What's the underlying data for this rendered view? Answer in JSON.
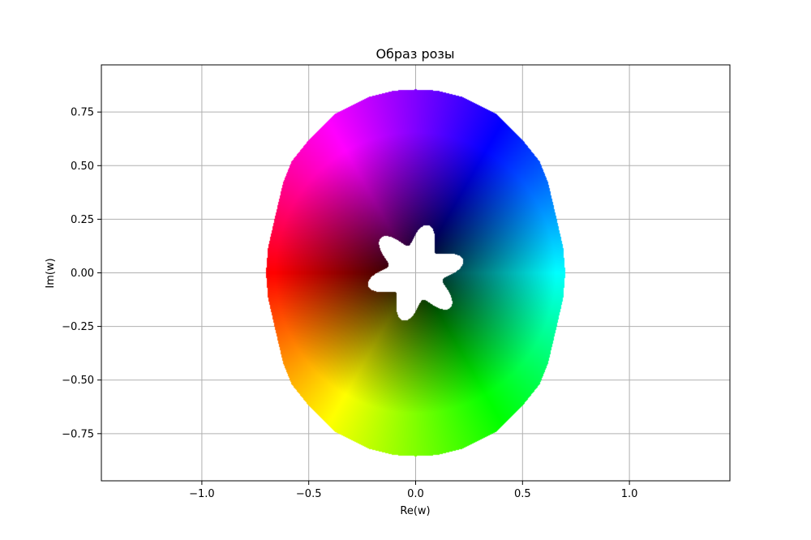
{
  "chart_data": {
    "type": "scatter",
    "title": "Образ розы",
    "xlabel": "Re(w)",
    "ylabel": "Im(w)",
    "xlim": [
      -1.47,
      1.47
    ],
    "ylim": [
      -0.97,
      0.97
    ],
    "grid": true,
    "x_ticks": [
      {
        "value": -1.0,
        "label": "−1.0"
      },
      {
        "value": -0.5,
        "label": "−0.5"
      },
      {
        "value": 0.0,
        "label": "0.0"
      },
      {
        "value": 0.5,
        "label": "0.5"
      },
      {
        "value": 1.0,
        "label": "1.0"
      }
    ],
    "y_ticks": [
      {
        "value": 0.75,
        "label": "0.75"
      },
      {
        "value": 0.5,
        "label": "0.50"
      },
      {
        "value": 0.25,
        "label": "0.25"
      },
      {
        "value": 0.0,
        "label": "0.00"
      },
      {
        "value": -0.25,
        "label": "−0.25"
      },
      {
        "value": -0.5,
        "label": "−0.50"
      },
      {
        "value": -0.75,
        "label": "−0.75"
      }
    ],
    "region": {
      "description_of_coloring": "hue by argument, brightness by radius",
      "outer_boundary": [
        [
          0.7,
          0.0
        ],
        [
          0.69,
          0.12
        ],
        [
          0.66,
          0.25
        ],
        [
          0.62,
          0.42
        ],
        [
          0.58,
          0.52
        ],
        [
          0.5,
          0.62
        ],
        [
          0.38,
          0.74
        ],
        [
          0.22,
          0.82
        ],
        [
          0.1,
          0.85
        ],
        [
          0.0,
          0.855
        ],
        [
          -0.1,
          0.85
        ],
        [
          -0.22,
          0.82
        ],
        [
          -0.38,
          0.74
        ],
        [
          -0.5,
          0.62
        ],
        [
          -0.58,
          0.52
        ],
        [
          -0.62,
          0.42
        ],
        [
          -0.66,
          0.25
        ],
        [
          -0.69,
          0.12
        ],
        [
          -0.7,
          0.0
        ],
        [
          -0.69,
          -0.12
        ],
        [
          -0.66,
          -0.25
        ],
        [
          -0.62,
          -0.42
        ],
        [
          -0.58,
          -0.52
        ],
        [
          -0.5,
          -0.62
        ],
        [
          -0.38,
          -0.74
        ],
        [
          -0.22,
          -0.82
        ],
        [
          -0.1,
          -0.85
        ],
        [
          0.0,
          -0.855
        ],
        [
          0.1,
          -0.85
        ],
        [
          0.22,
          -0.82
        ],
        [
          0.38,
          -0.74
        ],
        [
          0.5,
          -0.62
        ],
        [
          0.58,
          -0.52
        ],
        [
          0.62,
          -0.42
        ],
        [
          0.66,
          -0.25
        ],
        [
          0.69,
          -0.12
        ]
      ],
      "inner_hole": {
        "shape": "rose",
        "petals": 6,
        "center": [
          0.0,
          0.0
        ],
        "min_radius": 0.13,
        "max_radius": 0.23,
        "petal_phase_deg": 90
      }
    }
  }
}
